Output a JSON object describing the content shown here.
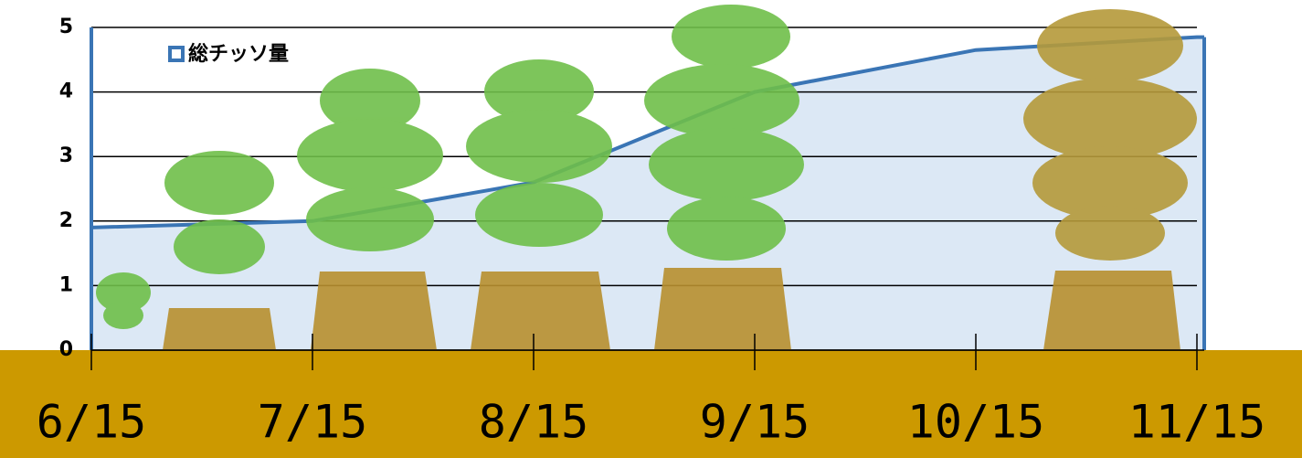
{
  "chart_data": {
    "type": "area",
    "categories": [
      "6/15",
      "7/15",
      "8/15",
      "9/15",
      "10/15",
      "11/15"
    ],
    "series": [
      {
        "name": "総チッソ量",
        "color": "#3a75b5",
        "fill": "#dce8f5",
        "values": [
          1.9,
          2.0,
          2.6,
          4.0,
          4.65,
          4.85
        ]
      }
    ],
    "ylim": [
      0,
      5
    ],
    "yticks": [
      0,
      1,
      2,
      3,
      4,
      5
    ],
    "grid": true,
    "legend": "top-left"
  }
}
